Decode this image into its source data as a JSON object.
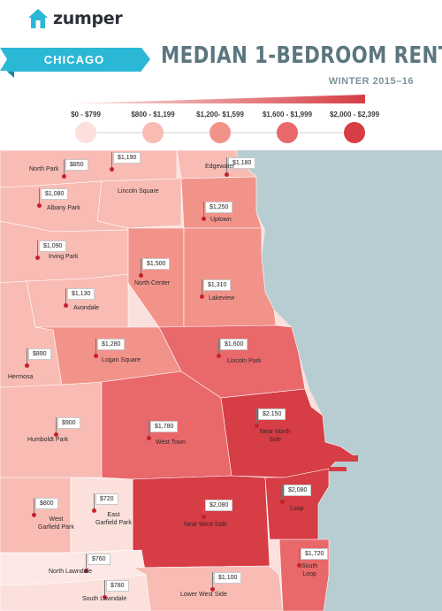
{
  "brand": {
    "name": "zumper"
  },
  "city": "CHICAGO",
  "title": "MEDIAN 1-BEDROOM RENT",
  "subtitle": "WINTER 2015–16",
  "legend": [
    {
      "label": "$0 - $799",
      "color": "#fbe0dc"
    },
    {
      "label": "$800 - $1,199",
      "color": "#f8bcb5"
    },
    {
      "label": "$1,200- $1,599",
      "color": "#f2938a"
    },
    {
      "label": "$1,600 - $1,999",
      "color": "#e9686a"
    },
    {
      "label": "$2,000 - $2,399",
      "color": "#d63d45"
    }
  ],
  "colors": {
    "lake": "#b7cdd2",
    "land_low": "#fbe0dc",
    "accent_ribbon": "#2bb7d6",
    "title": "#5c7680"
  },
  "neighborhoods": [
    {
      "name": "North Park",
      "rent": "$850"
    },
    {
      "name": "Lincoln Square",
      "rent": "$1,190"
    },
    {
      "name": "Edgewater",
      "rent": "$1,180"
    },
    {
      "name": "Albany Park",
      "rent": "$1,080"
    },
    {
      "name": "Uptown",
      "rent": "$1,250"
    },
    {
      "name": "Irving Park",
      "rent": "$1,090"
    },
    {
      "name": "North Center",
      "rent": "$1,500"
    },
    {
      "name": "Lakeview",
      "rent": "$1,310"
    },
    {
      "name": "Avondale",
      "rent": "$1,130"
    },
    {
      "name": "Logan Square",
      "rent": "$1,280"
    },
    {
      "name": "Lincoln Park",
      "rent": "$1,600"
    },
    {
      "name": "Hermosa",
      "rent": "$890"
    },
    {
      "name": "Humboldt Park",
      "rent": "$900"
    },
    {
      "name": "West Town",
      "rent": "$1,780"
    },
    {
      "name": "Near North Side",
      "rent": "$2,150"
    },
    {
      "name": "West Garfield Park",
      "rent": "$800"
    },
    {
      "name": "East Garfield Park",
      "rent": "$720"
    },
    {
      "name": "Near West Side",
      "rent": "$2,080"
    },
    {
      "name": "Loop",
      "rent": "$2,080"
    },
    {
      "name": "North Lawndale",
      "rent": "$760"
    },
    {
      "name": "South Loop",
      "rent": "$1,720"
    },
    {
      "name": "Lower West Side",
      "rent": "$1,100"
    },
    {
      "name": "South Lawndale",
      "rent": "$780"
    }
  ]
}
